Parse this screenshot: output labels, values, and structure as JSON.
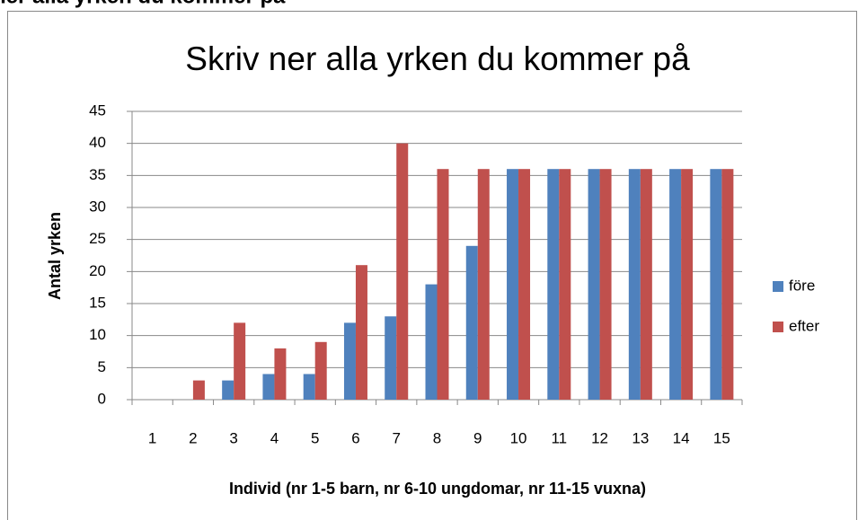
{
  "header": "ner alla yrken du kommer på",
  "chart_data": {
    "type": "bar",
    "title": "Skriv ner alla yrken du kommer på",
    "x_label": "Individ (nr 1-5 barn, nr 6-10 ungdomar, nr 11-15 vuxna)",
    "y_label": "Antal yrken",
    "categories": [
      "1",
      "2",
      "3",
      "4",
      "5",
      "6",
      "7",
      "8",
      "9",
      "10",
      "11",
      "12",
      "13",
      "14",
      "15"
    ],
    "series": [
      {
        "name": "före",
        "color": "#4f81bd",
        "values": [
          0,
          0,
          3,
          4,
          4,
          12,
          13,
          18,
          24,
          36,
          36,
          36,
          36,
          36,
          36
        ]
      },
      {
        "name": "efter",
        "color": "#c0504d",
        "values": [
          0,
          3,
          12,
          8,
          9,
          21,
          40,
          36,
          36,
          36,
          36,
          36,
          36,
          36,
          36
        ]
      }
    ],
    "ylim": [
      0,
      45
    ],
    "yticks": [
      0,
      5,
      10,
      15,
      20,
      25,
      30,
      35,
      40,
      45
    ],
    "grid": true,
    "legend": "right"
  }
}
